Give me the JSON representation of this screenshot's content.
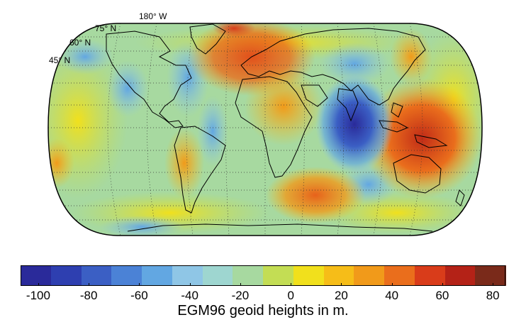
{
  "map": {
    "projection": "Robinson",
    "lat_labels": [
      "75° N",
      "60° N",
      "45° N"
    ],
    "lon_label": "180° W",
    "colormap": [
      "#2a2a9a",
      "#2e3fb0",
      "#3b5fc4",
      "#4b82d6",
      "#62a7e2",
      "#8fc6e6",
      "#9ed6d0",
      "#a7d9a0",
      "#c3dd54",
      "#f1e01c",
      "#f6bd18",
      "#f19a1a",
      "#ea6e1c",
      "#d93c1a",
      "#b42217",
      "#7a2a1a"
    ]
  },
  "colorbar": {
    "ticks": [
      "-100",
      "-80",
      "-60",
      "-40",
      "-20",
      "0",
      "20",
      "40",
      "60",
      "80"
    ],
    "tick_values": [
      -100,
      -80,
      -60,
      -40,
      -20,
      0,
      20,
      40,
      60,
      80
    ],
    "range": [
      -107,
      85
    ],
    "label": "EGM96 geoid heights in m."
  }
}
